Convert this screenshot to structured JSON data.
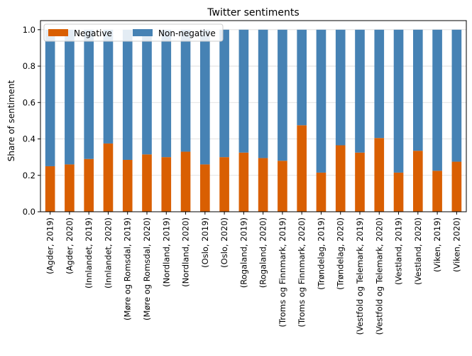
{
  "chart_data": {
    "type": "bar",
    "stacked": true,
    "title": "Twitter sentiments",
    "xlabel": "",
    "ylabel": "Share of sentiment",
    "ylim": [
      0,
      1.05
    ],
    "yticks": [
      "0.0",
      "0.2",
      "0.4",
      "0.6",
      "0.8",
      "1.0"
    ],
    "grid": "horizontal",
    "legend_position": "top-left",
    "categories": [
      "(Agder, 2019)",
      "(Agder, 2020)",
      "(Innlandet, 2019)",
      "(Innlandet, 2020)",
      "(Møre og Romsdal, 2019)",
      "(Møre og Romsdal, 2020)",
      "(Nordland, 2019)",
      "(Nordland, 2020)",
      "(Oslo, 2019)",
      "(Oslo, 2020)",
      "(Rogaland, 2019)",
      "(Rogaland, 2020)",
      "(Troms og Finnmark, 2019)",
      "(Troms og Finnmark, 2020)",
      "(Trøndelag, 2019)",
      "(Trøndelag, 2020)",
      "(Vestfold og Telemark, 2019)",
      "(Vestfold og Telemark, 2020)",
      "(Vestland, 2019)",
      "(Vestland, 2020)",
      "(Viken, 2019)",
      "(Viken, 2020)"
    ],
    "series": [
      {
        "name": "Negative",
        "color": "#d95f02",
        "values": [
          0.25,
          0.26,
          0.29,
          0.375,
          0.285,
          0.315,
          0.3,
          0.33,
          0.26,
          0.3,
          0.325,
          0.295,
          0.28,
          0.475,
          0.215,
          0.365,
          0.325,
          0.405,
          0.215,
          0.335,
          0.225,
          0.275
        ]
      },
      {
        "name": "Non-negative",
        "color": "#4682b4",
        "values": [
          0.75,
          0.74,
          0.71,
          0.625,
          0.715,
          0.685,
          0.7,
          0.67,
          0.74,
          0.7,
          0.675,
          0.705,
          0.72,
          0.525,
          0.785,
          0.635,
          0.675,
          0.595,
          0.785,
          0.665,
          0.775,
          0.725
        ]
      }
    ]
  }
}
